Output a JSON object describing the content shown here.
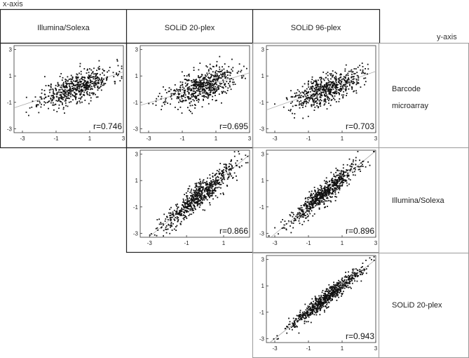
{
  "figure": {
    "x_axis_title": "x-axis",
    "y_axis_title": "y-axis",
    "column_headers": [
      "Illumina/Solexa",
      "SOLiD 20-plex",
      "SOLiD 96-plex"
    ],
    "row_labels": [
      "Barcode microarray",
      "Illumina/Solexa",
      "SOLiD 20-plex"
    ]
  },
  "colors": {
    "point": "#111111",
    "frame": "#222222",
    "fit_line": "#aaaaaa",
    "light_frame": "#9a9a9a"
  },
  "chart_data": [
    {
      "type": "scatter",
      "row": 0,
      "col": 0,
      "x_label_source": "Illumina/Solexa",
      "y_label_source": "Barcode microarray",
      "xlim": [
        -3.5,
        3
      ],
      "ylim": [
        -3.3,
        3.3
      ],
      "x_ticks": [
        -3,
        -1,
        1,
        3
      ],
      "y_ticks": [
        3,
        1,
        -1,
        -3
      ],
      "r_label": "r=0.746",
      "r": 0.746,
      "trend": {
        "slope": 0.42,
        "intercept": 0.05
      },
      "n_points": 600,
      "x_center": 0.2,
      "x_spread": 1.05,
      "residual_sd": 0.55,
      "seed": 11
    },
    {
      "type": "scatter",
      "row": 0,
      "col": 1,
      "x_label_source": "SOLiD 20-plex",
      "y_label_source": "Barcode microarray",
      "xlim": [
        -3.5,
        3
      ],
      "ylim": [
        -3.3,
        3.3
      ],
      "x_ticks": [
        -3,
        -1,
        1,
        3
      ],
      "y_ticks": [
        3,
        1,
        -1,
        -3
      ],
      "r_label": "r=0.695",
      "r": 0.695,
      "trend": {
        "slope": 0.38,
        "intercept": 0.1
      },
      "n_points": 600,
      "x_center": 0.1,
      "x_spread": 1.05,
      "residual_sd": 0.6,
      "seed": 23
    },
    {
      "type": "scatter",
      "row": 0,
      "col": 2,
      "x_label_source": "SOLiD 96-plex",
      "y_label_source": "Barcode microarray",
      "xlim": [
        -3.5,
        3
      ],
      "ylim": [
        -3.3,
        3.3
      ],
      "x_ticks": [
        -3,
        -1,
        1,
        3
      ],
      "y_ticks": [
        3,
        1,
        -1,
        -3
      ],
      "r_label": "r=0.703",
      "r": 0.703,
      "trend": {
        "slope": 0.45,
        "intercept": 0.0
      },
      "n_points": 600,
      "x_center": 0.1,
      "x_spread": 1.0,
      "residual_sd": 0.55,
      "seed": 37
    },
    {
      "type": "scatter",
      "row": 1,
      "col": 1,
      "x_label_source": "SOLiD 20-plex",
      "y_label_source": "Illumina/Solexa",
      "xlim": [
        -3.5,
        2.4
      ],
      "ylim": [
        -3.3,
        3.3
      ],
      "x_ticks": [
        -3,
        -1,
        1
      ],
      "y_ticks": [
        3,
        1,
        -1,
        -3
      ],
      "r_label": "r=0.866",
      "r": 0.866,
      "trend": {
        "slope": 1.15,
        "intercept": 0.2
      },
      "n_points": 700,
      "x_center": -0.3,
      "x_spread": 1.0,
      "residual_sd": 0.5,
      "seed": 41
    },
    {
      "type": "scatter",
      "row": 1,
      "col": 2,
      "x_label_source": "SOLiD 96-plex",
      "y_label_source": "Illumina/Solexa",
      "xlim": [
        -3.5,
        3
      ],
      "ylim": [
        -3.3,
        3.3
      ],
      "x_ticks": [
        -3,
        -1,
        1,
        3
      ],
      "y_ticks": [
        3,
        1,
        -1,
        -3
      ],
      "r_label": "r=0.896",
      "r": 0.896,
      "trend": {
        "slope": 1.05,
        "intercept": 0.1
      },
      "n_points": 700,
      "x_center": 0.0,
      "x_spread": 1.05,
      "residual_sd": 0.42,
      "seed": 53
    },
    {
      "type": "scatter",
      "row": 2,
      "col": 2,
      "x_label_source": "SOLiD 96-plex",
      "y_label_source": "SOLiD 20-plex",
      "xlim": [
        -3.5,
        3
      ],
      "ylim": [
        -3.3,
        3.3
      ],
      "x_ticks": [
        -3,
        -1,
        1,
        3
      ],
      "y_ticks": [
        3,
        1,
        -1,
        -3
      ],
      "r_label": "r=0.943",
      "r": 0.943,
      "trend": {
        "slope": 1.0,
        "intercept": 0.0
      },
      "n_points": 700,
      "x_center": 0.0,
      "x_spread": 1.05,
      "residual_sd": 0.3,
      "seed": 67
    }
  ]
}
